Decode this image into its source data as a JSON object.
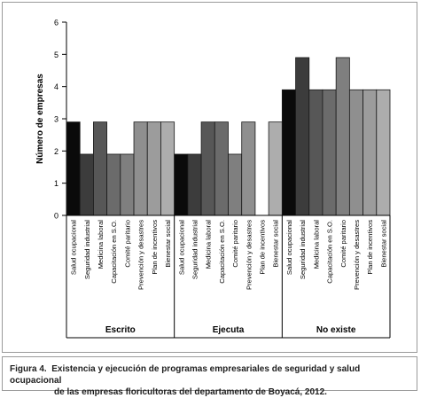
{
  "chart_data": {
    "type": "bar",
    "ylabel": "Número de empresas",
    "ylim": [
      0,
      6
    ],
    "yticks": [
      0,
      1,
      2,
      3,
      4,
      5,
      6
    ],
    "groups": [
      {
        "label": "Escrito",
        "bars": [
          {
            "label": "Salud ocupacional",
            "value": 2.9
          },
          {
            "label": "Seguridad industrial",
            "value": 1.9
          },
          {
            "label": "Medicina laboral",
            "value": 2.9
          },
          {
            "label": "Capacitación en S.O.",
            "value": 1.9
          },
          {
            "label": "Comité paritario",
            "value": 1.9
          },
          {
            "label": "Prevención y desastres",
            "value": 2.9
          },
          {
            "label": "Plan de incentivos",
            "value": 2.9
          },
          {
            "label": "Bienestar social",
            "value": 2.9
          }
        ]
      },
      {
        "label": "Ejecuta",
        "bars": [
          {
            "label": "Salud ocupacional",
            "value": 1.9
          },
          {
            "label": "Seguridad industrial",
            "value": 1.9
          },
          {
            "label": "Medicina laboral",
            "value": 2.9
          },
          {
            "label": "Capacitación en S.O.",
            "value": 2.9
          },
          {
            "label": "Comité paritario",
            "value": 1.9
          },
          {
            "label": "Prevención y desastres",
            "value": 2.9
          },
          {
            "label": "Plan de incentivos",
            "value": 0
          },
          {
            "label": "Bienestar social",
            "value": 2.9
          }
        ]
      },
      {
        "label": "No existe",
        "bars": [
          {
            "label": "Salud ocupacional",
            "value": 3.9
          },
          {
            "label": "Seguridad industrial",
            "value": 4.9
          },
          {
            "label": "Medicina laboral",
            "value": 3.9
          },
          {
            "label": "Capacitación en S.O.",
            "value": 3.9
          },
          {
            "label": "Comité paritario",
            "value": 4.9
          },
          {
            "label": "Prevención y desastres",
            "value": 3.9
          },
          {
            "label": "Plan de incentivos",
            "value": 3.9
          },
          {
            "label": "Bienestar social",
            "value": 3.9
          }
        ]
      }
    ],
    "bar_colors": [
      "#0a0a0a",
      "#3c3c3c",
      "#575757",
      "#6b6b6b",
      "#7f7f7f",
      "#8f8f8f",
      "#9c9c9c",
      "#adadad"
    ]
  },
  "caption": {
    "label": "Figura 4.",
    "line1": "Existencia y ejecución de programas empresariales de seguridad y salud ocupacional",
    "line2": "de las empresas floricultoras del departamento de Boyacá, 2012."
  }
}
